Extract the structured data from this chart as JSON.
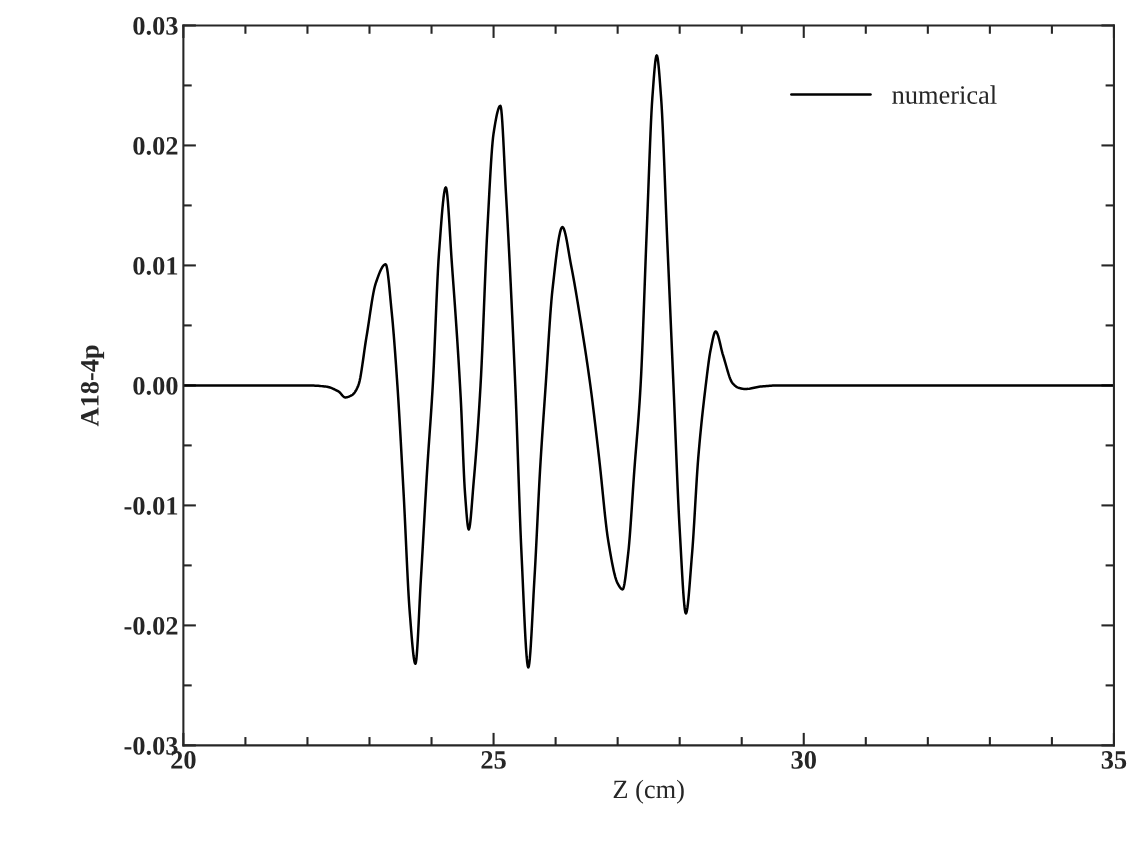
{
  "chart_data": {
    "type": "line",
    "xlabel": "Z (cm)",
    "ylabel": "A18-4p",
    "series": [
      {
        "name": "numerical",
        "color": "#000000",
        "x": [
          20,
          21,
          22.0,
          22.3,
          22.5,
          22.61,
          22.72,
          22.82,
          22.95,
          23.1,
          23.26,
          23.36,
          23.45,
          23.55,
          23.65,
          23.74,
          23.83,
          23.93,
          24.02,
          24.12,
          24.23,
          24.33,
          24.47,
          24.54,
          24.6,
          24.68,
          24.79,
          24.9,
          25.0,
          25.11,
          25.2,
          25.35,
          25.45,
          25.56,
          25.66,
          25.75,
          25.84,
          25.95,
          26.11,
          26.25,
          26.4,
          26.56,
          26.7,
          26.85,
          27.0,
          27.08,
          27.17,
          27.27,
          27.37,
          27.47,
          27.56,
          27.63,
          27.7,
          27.8,
          27.9,
          28.0,
          28.1,
          28.2,
          28.3,
          28.42,
          28.5,
          28.58,
          28.7,
          28.85,
          28.95,
          29.06,
          29.3,
          29.6,
          30,
          35
        ],
        "values": [
          0,
          0,
          0,
          -0.0001,
          -0.0005,
          -0.001,
          -0.0008,
          0,
          0.004,
          0.0085,
          0.0101,
          0.006,
          0,
          -0.009,
          -0.019,
          -0.0232,
          -0.016,
          -0.007,
          0,
          0.011,
          0.0165,
          0.01,
          -0.001,
          -0.009,
          -0.012,
          -0.008,
          0,
          0.013,
          0.021,
          0.0233,
          0.016,
          0,
          -0.014,
          -0.0235,
          -0.016,
          -0.007,
          0,
          0.008,
          0.0132,
          0.01,
          0.0055,
          0,
          -0.006,
          -0.013,
          -0.0165,
          -0.017,
          -0.014,
          -0.007,
          0,
          0.013,
          0.024,
          0.0275,
          0.024,
          0.012,
          0,
          -0.012,
          -0.019,
          -0.014,
          -0.006,
          0,
          0.003,
          0.0045,
          0.0025,
          0.0002,
          -0.0002,
          -0.0003,
          -0.0001,
          0,
          0,
          0
        ]
      }
    ],
    "xlim": [
      20,
      35
    ],
    "xticks": [
      20,
      25,
      30,
      35
    ],
    "ylim": [
      -0.03,
      0.03
    ],
    "yticks": [
      {
        "value": 0.03,
        "label": "0.03"
      },
      {
        "value": 0.02,
        "label": "0.02"
      },
      {
        "value": 0.01,
        "label": "0.01"
      },
      {
        "value": 0.0,
        "label": "0.00"
      },
      {
        "value": -0.01,
        "label": "-0.01"
      },
      {
        "value": -0.02,
        "label": "-0.02"
      },
      {
        "value": -0.03,
        "label": "-0.03"
      }
    ],
    "grid": false,
    "legend": "top right",
    "line_style": "solid",
    "marker": "none"
  }
}
